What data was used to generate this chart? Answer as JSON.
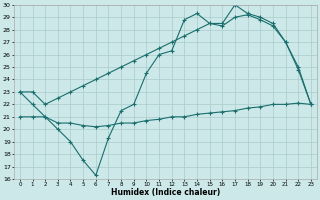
{
  "xlabel": "Humidex (Indice chaleur)",
  "bg_color": "#cce8e8",
  "grid_color": "#aacccc",
  "line_color": "#1a6e6e",
  "xlim": [
    -0.5,
    23.5
  ],
  "ylim": [
    16,
    30
  ],
  "xticks": [
    0,
    1,
    2,
    3,
    4,
    5,
    6,
    7,
    8,
    9,
    10,
    11,
    12,
    13,
    14,
    15,
    16,
    17,
    18,
    19,
    20,
    21,
    22,
    23
  ],
  "yticks": [
    16,
    17,
    18,
    19,
    20,
    21,
    22,
    23,
    24,
    25,
    26,
    27,
    28,
    29,
    30
  ],
  "line1_x": [
    0,
    1,
    2,
    3,
    4,
    5,
    6,
    7,
    8,
    9,
    10,
    11,
    12,
    13,
    14,
    15,
    16,
    17,
    18,
    19,
    20,
    21,
    22,
    23
  ],
  "line1_y": [
    23.0,
    22.0,
    21.0,
    20.0,
    19.0,
    17.5,
    16.3,
    19.3,
    21.5,
    22.0,
    24.5,
    26.0,
    26.3,
    28.8,
    29.3,
    28.5,
    28.5,
    30.0,
    29.3,
    29.0,
    28.5,
    27.0,
    25.0,
    22.0
  ],
  "line2_x": [
    0,
    1,
    2,
    3,
    4,
    5,
    6,
    7,
    8,
    9,
    10,
    11,
    12,
    13,
    14,
    15,
    16,
    17,
    18,
    19,
    20,
    21,
    22,
    23
  ],
  "line2_y": [
    23.0,
    23.0,
    22.0,
    22.5,
    23.0,
    23.5,
    24.0,
    24.5,
    25.0,
    25.5,
    26.0,
    26.5,
    27.0,
    27.5,
    28.0,
    28.5,
    28.3,
    29.0,
    29.2,
    28.8,
    28.3,
    27.0,
    24.8,
    22.0
  ],
  "line3_x": [
    0,
    1,
    2,
    3,
    4,
    5,
    6,
    7,
    8,
    9,
    10,
    11,
    12,
    13,
    14,
    15,
    16,
    17,
    18,
    19,
    20,
    21,
    22,
    23
  ],
  "line3_y": [
    21.0,
    21.0,
    21.0,
    20.5,
    20.5,
    20.3,
    20.2,
    20.3,
    20.5,
    20.5,
    20.7,
    20.8,
    21.0,
    21.0,
    21.2,
    21.3,
    21.4,
    21.5,
    21.7,
    21.8,
    22.0,
    22.0,
    22.1,
    22.0
  ]
}
